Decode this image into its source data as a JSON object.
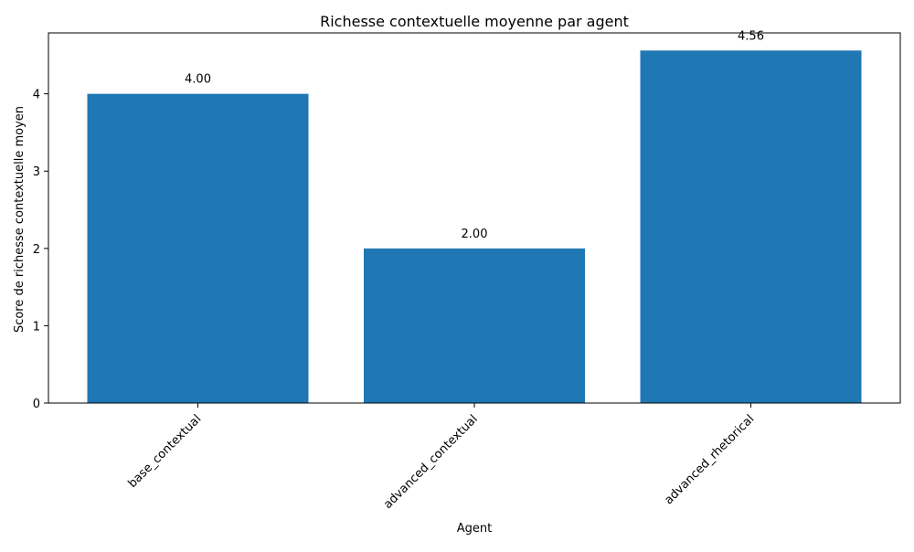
{
  "chart_data": {
    "type": "bar",
    "title": "Richesse contextuelle moyenne par agent",
    "xlabel": "Agent",
    "ylabel": "Score de richesse contextuelle moyen",
    "categories": [
      "base_contextual",
      "advanced_contextual",
      "advanced_rhetorical"
    ],
    "values": [
      4.0,
      2.0,
      4.56
    ],
    "data_labels": [
      "4.00",
      "2.00",
      "4.56"
    ],
    "yticks": [
      0,
      1,
      2,
      3,
      4
    ],
    "ytick_labels": [
      "0",
      "1",
      "2",
      "3",
      "4"
    ],
    "ylim": [
      0,
      4.788
    ],
    "grid": false,
    "legend": "none",
    "bar_color": "#1f77b4",
    "xtick_rotation_deg": 45
  }
}
